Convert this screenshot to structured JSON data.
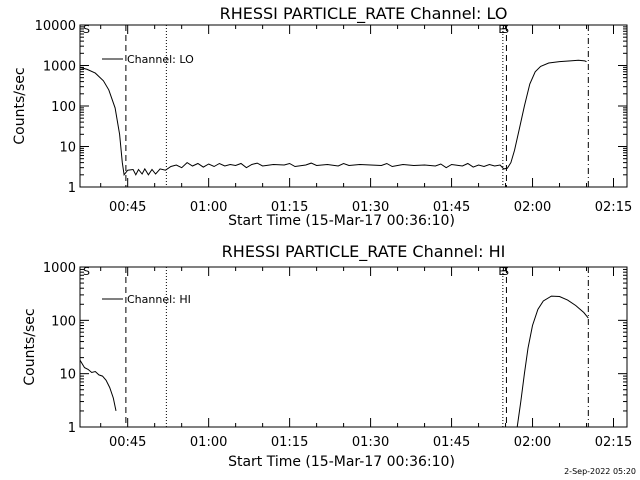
{
  "footer": "2-Sep-2022 05:20",
  "colors": {
    "background": "#ffffff",
    "foreground": "#000000"
  },
  "chart_data": [
    {
      "type": "line",
      "title": "RHESSI PARTICLE_RATE Channel: LO",
      "xlabel": "Start Time (15-Mar-17 00:36:10)",
      "ylabel": "Counts/sec",
      "yscale": "log",
      "ylim": [
        1,
        10000
      ],
      "xlim": [
        "00:36:10",
        "02:17:30"
      ],
      "xticks": [
        "00:45",
        "01:00",
        "01:15",
        "01:30",
        "01:45",
        "02:00",
        "02:15"
      ],
      "yticks": [
        "1",
        "10",
        "100",
        "1000",
        "10000"
      ],
      "legend": {
        "position": "top-left",
        "entries": [
          "Channel: LO"
        ]
      },
      "markers": [
        {
          "label": "S",
          "time": "00:36:10",
          "style": "text"
        },
        {
          "label": "",
          "time": "00:44:40",
          "style": "dashed"
        },
        {
          "label": "",
          "time": "00:52:10",
          "style": "dotted"
        },
        {
          "label": "E",
          "time": "01:54:30",
          "style": "dotted"
        },
        {
          "label": "S",
          "time": "01:55:10",
          "style": "dashed"
        },
        {
          "label": "",
          "time": "02:10:20",
          "style": "dashdot"
        }
      ],
      "series": [
        {
          "name": "Channel: LO",
          "points": [
            [
              "00:36:10",
              900
            ],
            [
              "00:37:30",
              800
            ],
            [
              "00:39:00",
              650
            ],
            [
              "00:40:30",
              420
            ],
            [
              "00:41:30",
              250
            ],
            [
              "00:42:40",
              90
            ],
            [
              "00:43:30",
              20
            ],
            [
              "00:44:00",
              4
            ],
            [
              "00:44:20",
              2
            ],
            [
              "00:45:00",
              2.6
            ],
            [
              "00:46:00",
              2.7
            ],
            [
              "00:46:30",
              2
            ],
            [
              "00:47:00",
              2.7
            ],
            [
              "00:47:40",
              2.1
            ],
            [
              "00:48:10",
              2.8
            ],
            [
              "00:48:50",
              2
            ],
            [
              "00:49:30",
              2.7
            ],
            [
              "00:50:10",
              2.1
            ],
            [
              "00:51:00",
              2.8
            ],
            [
              "00:52:00",
              2.6
            ],
            [
              "00:53:00",
              3.2
            ],
            [
              "00:54:00",
              3.5
            ],
            [
              "00:55:00",
              3.0
            ],
            [
              "00:56:00",
              4.0
            ],
            [
              "00:57:00",
              3.3
            ],
            [
              "00:58:00",
              3.8
            ],
            [
              "00:59:00",
              3.1
            ],
            [
              "01:00:00",
              3.7
            ],
            [
              "01:01:00",
              3.2
            ],
            [
              "01:02:00",
              3.8
            ],
            [
              "01:03:00",
              3.3
            ],
            [
              "01:04:00",
              3.6
            ],
            [
              "01:05:00",
              3.4
            ],
            [
              "01:06:00",
              3.8
            ],
            [
              "01:07:00",
              3.0
            ],
            [
              "01:08:00",
              3.6
            ],
            [
              "01:09:00",
              3.9
            ],
            [
              "01:10:00",
              3.3
            ],
            [
              "01:12:00",
              3.6
            ],
            [
              "01:14:00",
              3.5
            ],
            [
              "01:15:00",
              3.8
            ],
            [
              "01:16:00",
              3.2
            ],
            [
              "01:18:00",
              3.5
            ],
            [
              "01:19:00",
              3.9
            ],
            [
              "01:20:00",
              3.4
            ],
            [
              "01:22:00",
              3.6
            ],
            [
              "01:24:00",
              3.3
            ],
            [
              "01:25:00",
              3.8
            ],
            [
              "01:26:00",
              3.4
            ],
            [
              "01:28:00",
              3.6
            ],
            [
              "01:30:00",
              3.5
            ],
            [
              "01:32:00",
              3.4
            ],
            [
              "01:33:00",
              3.8
            ],
            [
              "01:34:00",
              3.2
            ],
            [
              "01:36:00",
              3.6
            ],
            [
              "01:38:00",
              3.4
            ],
            [
              "01:40:00",
              3.5
            ],
            [
              "01:42:00",
              3.3
            ],
            [
              "01:43:00",
              3.7
            ],
            [
              "01:44:00",
              3.0
            ],
            [
              "01:45:00",
              3.6
            ],
            [
              "01:47:00",
              3.3
            ],
            [
              "01:48:00",
              3.8
            ],
            [
              "01:49:00",
              3.1
            ],
            [
              "01:50:00",
              3.5
            ],
            [
              "01:51:00",
              3.2
            ],
            [
              "01:52:00",
              3.6
            ],
            [
              "01:53:00",
              3.3
            ],
            [
              "01:54:00",
              3.5
            ],
            [
              "01:54:40",
              2.8
            ],
            [
              "01:55:20",
              2.9
            ],
            [
              "01:56:00",
              4
            ],
            [
              "01:56:40",
              8
            ],
            [
              "01:57:30",
              25
            ],
            [
              "01:58:30",
              100
            ],
            [
              "01:59:30",
              350
            ],
            [
              "02:00:30",
              700
            ],
            [
              "02:01:30",
              950
            ],
            [
              "02:03:00",
              1150
            ],
            [
              "02:05:00",
              1250
            ],
            [
              "02:07:00",
              1300
            ],
            [
              "02:08:30",
              1350
            ],
            [
              "02:09:40",
              1300
            ],
            [
              "02:10:00",
              1250
            ]
          ]
        }
      ]
    },
    {
      "type": "line",
      "title": "RHESSI PARTICLE_RATE Channel: HI",
      "xlabel": "Start Time (15-Mar-17 00:36:10)",
      "ylabel": "Counts/sec",
      "yscale": "log",
      "ylim": [
        1,
        1000
      ],
      "xlim": [
        "00:36:10",
        "02:17:30"
      ],
      "xticks": [
        "00:45",
        "01:00",
        "01:15",
        "01:30",
        "01:45",
        "02:00",
        "02:15"
      ],
      "yticks": [
        "1",
        "10",
        "100",
        "1000"
      ],
      "legend": {
        "position": "top-left",
        "entries": [
          "Channel: HI"
        ]
      },
      "markers": [
        {
          "label": "S",
          "time": "00:36:10",
          "style": "text"
        },
        {
          "label": "",
          "time": "00:44:40",
          "style": "dashed"
        },
        {
          "label": "",
          "time": "00:52:10",
          "style": "dotted"
        },
        {
          "label": "E",
          "time": "01:54:30",
          "style": "dotted"
        },
        {
          "label": "S",
          "time": "01:55:10",
          "style": "dashed"
        },
        {
          "label": "",
          "time": "02:10:20",
          "style": "dashdot"
        }
      ],
      "series": [
        {
          "name": "Channel: HI",
          "points": [
            [
              "00:36:10",
              18
            ],
            [
              "00:37:00",
              13
            ],
            [
              "00:37:40",
              12
            ],
            [
              "00:38:20",
              10.5
            ],
            [
              "00:39:00",
              11
            ],
            [
              "00:39:40",
              9.5
            ],
            [
              "00:40:20",
              9
            ],
            [
              "00:41:00",
              7.5
            ],
            [
              "00:41:40",
              5.5
            ],
            [
              "00:42:20",
              3.5
            ],
            [
              "00:42:50",
              2
            ]
          ]
        },
        {
          "name": "Channel: HI",
          "points": [
            [
              "01:57:10",
              1
            ],
            [
              "01:57:50",
              3
            ],
            [
              "01:58:30",
              10
            ],
            [
              "01:59:10",
              30
            ],
            [
              "02:00:00",
              80
            ],
            [
              "02:01:00",
              160
            ],
            [
              "02:02:00",
              230
            ],
            [
              "02:03:30",
              285
            ],
            [
              "02:05:00",
              280
            ],
            [
              "02:06:30",
              240
            ],
            [
              "02:08:00",
              190
            ],
            [
              "02:09:30",
              140
            ],
            [
              "02:10:20",
              110
            ]
          ]
        }
      ]
    }
  ]
}
